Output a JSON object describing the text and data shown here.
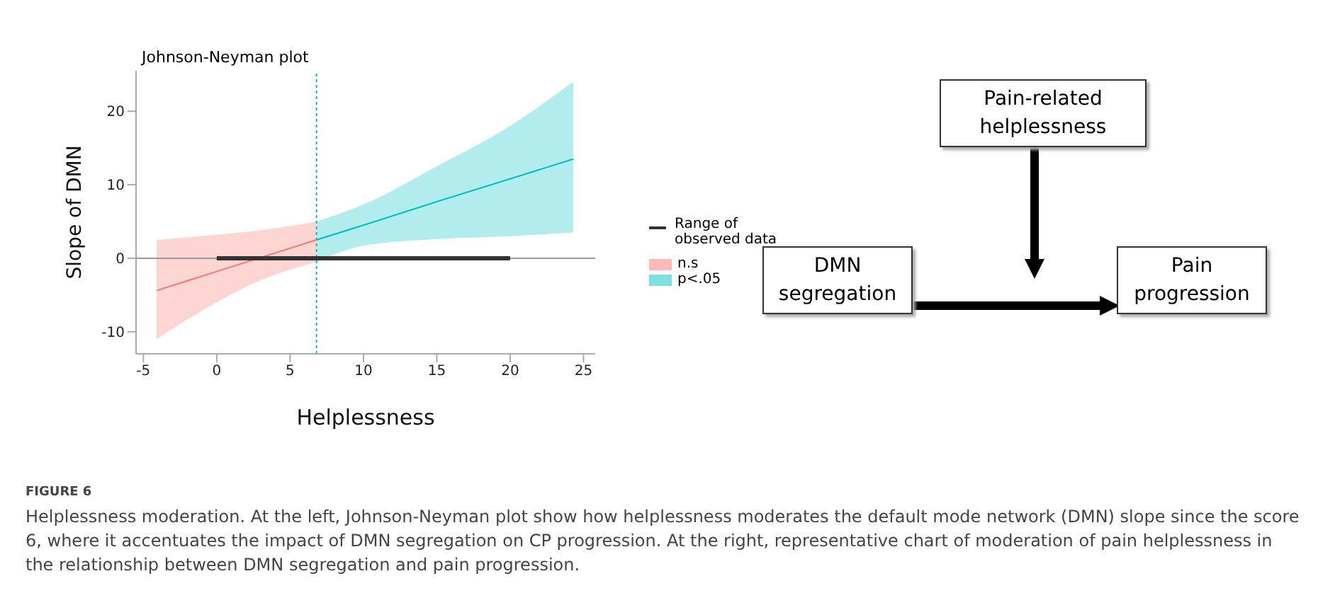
{
  "chart_data": [
    {
      "type": "line",
      "title": "Johnson-Neyman plot",
      "xlabel": "Helplessness",
      "ylabel": "Slope of DMN",
      "xlim": [
        -5.5,
        25.8
      ],
      "xticks": [
        -5,
        0,
        5,
        10,
        15,
        20,
        25
      ],
      "ylim": [
        -13,
        25.5
      ],
      "yticks": [
        -10,
        0,
        10,
        20
      ],
      "legend": "right",
      "marker": "none",
      "series": [
        {
          "name": "n.s",
          "color": "#f8766d",
          "x": [
            -4.1,
            0,
            3,
            6.8
          ],
          "values": [
            -4.4,
            -1.8,
            0.1,
            2.5
          ],
          "lower": [
            -11,
            -6,
            -3,
            -0.5
          ],
          "upper": [
            2.5,
            3.2,
            3.8,
            5
          ]
        },
        {
          "name": "p<.05",
          "color": "#00bfc4",
          "x": [
            6.8,
            10,
            15,
            20,
            24.3
          ],
          "values": [
            2.5,
            4.5,
            7.7,
            10.8,
            13.5
          ],
          "lower": [
            -0.5,
            1.7,
            2.6,
            3,
            3.5
          ],
          "upper": [
            5,
            7.3,
            12.5,
            18,
            24
          ]
        },
        {
          "name": "Range of observed data",
          "color": "#333333",
          "x": [
            0,
            20
          ],
          "values": [
            0,
            0
          ]
        }
      ],
      "ref_lines": [
        {
          "axis": "y",
          "value": 0,
          "color": "#999999",
          "line_style": "solid"
        },
        {
          "axis": "x",
          "value": 6.8,
          "color": "#00bfc4",
          "line_style": "dotted"
        }
      ],
      "annotations": [
        "FIGURE 6",
        "Helplessness moderation. At the left, Johnson-Neyman plot show how helplessness moderates the default mode network (DMN) slope since the score 6, where it accentuates the impact of DMN segregation on CP progression. At the right, representative chart of moderation of pain helplessness in the relationship between DMN segregation and pain progression."
      ]
    },
    {
      "type": "other",
      "annotations": [
        "Pain-related helplessness",
        "DMN segregation",
        "Pain progression"
      ]
    }
  ]
}
